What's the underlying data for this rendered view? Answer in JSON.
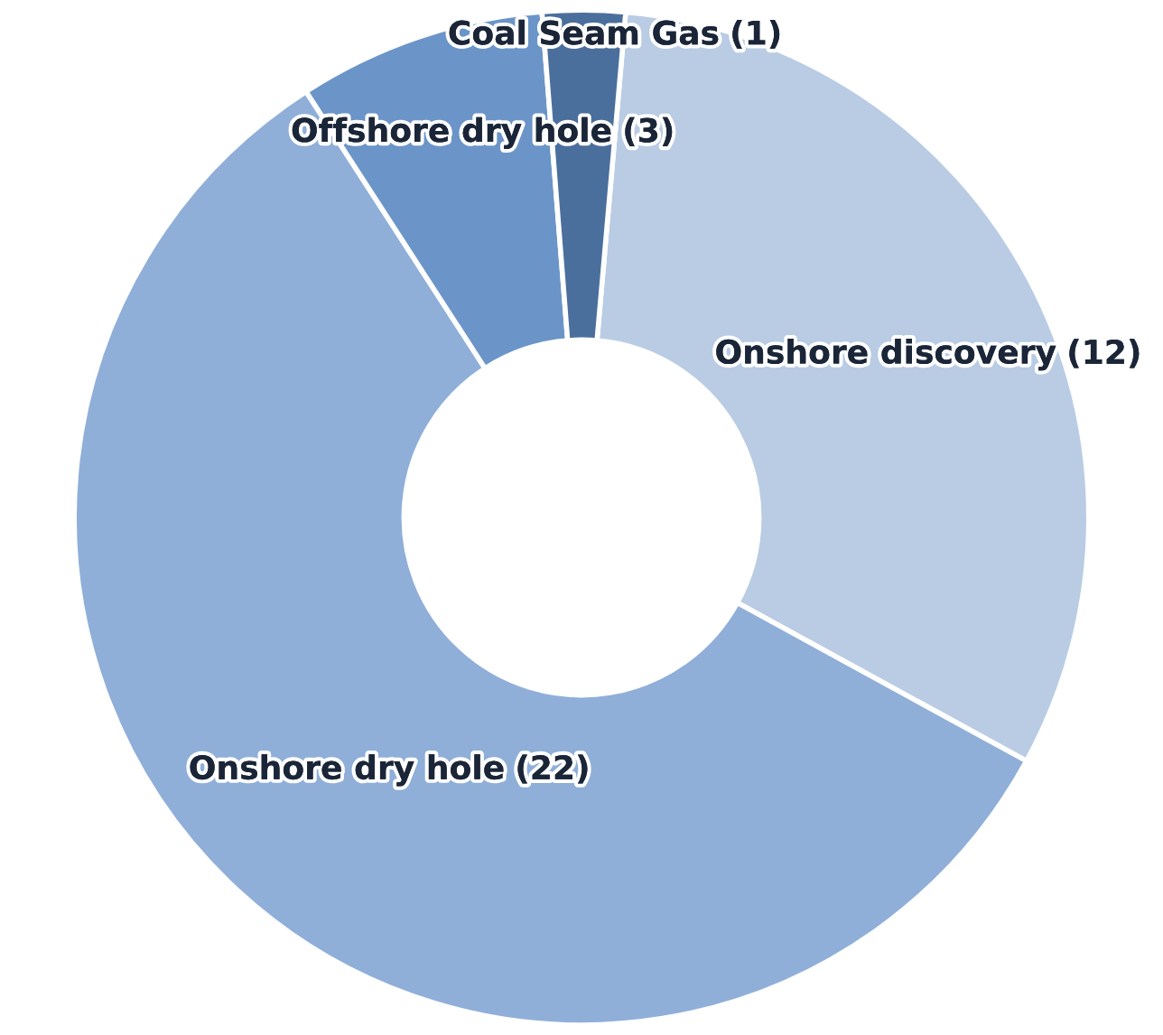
{
  "chart_data": {
    "type": "donut",
    "categories": [
      "Onshore discovery",
      "Onshore dry hole",
      "Offshore dry hole",
      "Coal Seam Gas"
    ],
    "values": [
      12,
      22,
      3,
      1
    ],
    "colors": [
      "#b9cce4",
      "#8fafd9",
      "#6b95c8",
      "#4b6f9c"
    ],
    "value_labels": [
      "(12)",
      "(22)",
      "(3)",
      "(1)"
    ],
    "legend": false
  }
}
